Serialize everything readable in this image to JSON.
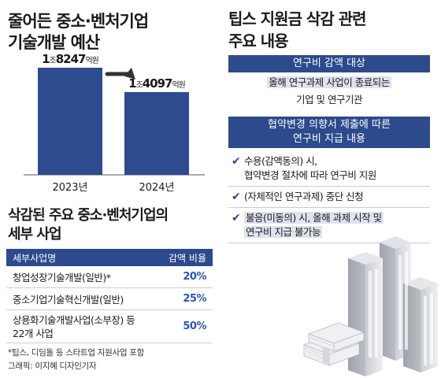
{
  "left": {
    "title_lines": [
      "줄어든 중소·벤처기업",
      "기술개발 예산"
    ],
    "subtitle_lines": [
      "삭감된 주요 중소·벤처기업의",
      "세부 사업"
    ],
    "table": {
      "headers": [
        "세부사업명",
        "감액 비율"
      ],
      "rows": [
        {
          "name": "창업성장기술개발(일반)*",
          "pct": "20%"
        },
        {
          "name_lines": [
            "중소기업기술혁신개발(일반)"
          ],
          "pct": "25%"
        },
        {
          "name_lines": [
            "상용화기술개발사업(소부장) 등",
            "22개 사업"
          ],
          "pct": "50%"
        }
      ]
    },
    "footnote_lines": [
      "*팁스, 디딤돌 등 스타트업 지원사업 포함",
      "그래픽: 이지혜 디자인기자"
    ]
  },
  "chart_data": {
    "type": "bar",
    "categories": [
      "2023년",
      "2024년"
    ],
    "values": [
      18247,
      14097
    ],
    "value_labels": [
      {
        "big": "1",
        "unit1": "조",
        "num": "8247",
        "unit2": "억원"
      },
      {
        "big": "1",
        "unit1": "조",
        "num": "4097",
        "unit2": "억원"
      }
    ],
    "ylim": [
      0,
      18247
    ],
    "colors": {
      "bar": "#2d4b8e",
      "arrow": "#333333"
    }
  },
  "right": {
    "title_lines": [
      "팁스 지원금 삭감 관련",
      "주요 내용"
    ],
    "section1": {
      "header": "연구비 감액 대상",
      "body_lines": [
        "올해 연구과제 사업이 종료되는",
        "기업 및 연구기관"
      ]
    },
    "section2": {
      "header_lines": [
        "협약변경 의향서 제출에 따른",
        "연구비 지급 내용"
      ],
      "items": [
        {
          "lines": [
            "수용(감액동의) 시,",
            "협약변경 절차에 따라 연구비 지원"
          ]
        },
        {
          "lines": [
            "(자체적인 연구과제) 중단 신청"
          ]
        },
        {
          "lines": [
            "불응(미동의) 시, 올해 과제 시작 및",
            "연구비 지급 불가능"
          ]
        }
      ]
    }
  }
}
